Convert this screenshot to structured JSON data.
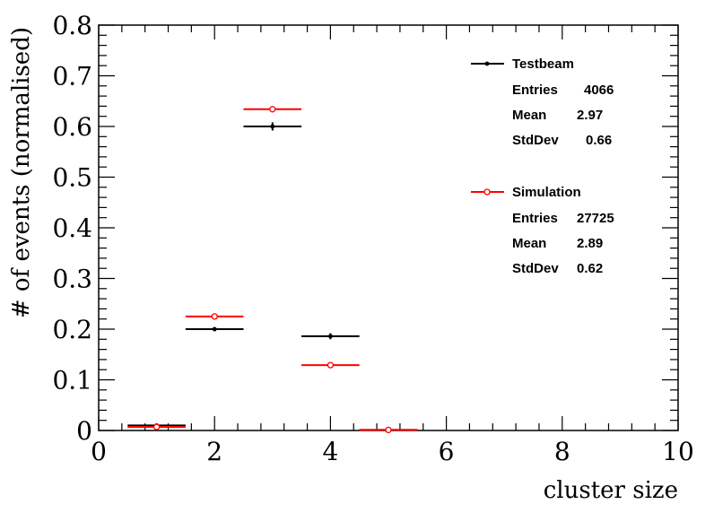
{
  "chart_data": {
    "type": "scatter",
    "xlabel": "cluster size",
    "ylabel": "# of events (normalised)",
    "xlim": [
      0,
      10
    ],
    "ylim": [
      0,
      0.8
    ],
    "x_ticks": [
      "0",
      "2",
      "4",
      "6",
      "8",
      "10"
    ],
    "y_ticks": [
      "0",
      "0.1",
      "0.2",
      "0.3",
      "0.4",
      "0.5",
      "0.6",
      "0.7",
      "0.8"
    ],
    "grid": false,
    "legend_position": "top-right",
    "series": [
      {
        "name": "Testbeam",
        "color": "#000000",
        "marker": "filled-dot",
        "x": [
          1,
          2,
          3,
          4,
          5
        ],
        "y": [
          0.01,
          0.2,
          0.6,
          0.186,
          0.001
        ],
        "yerr": [
          0.002,
          0.004,
          0.008,
          0.006,
          0.0005
        ],
        "xerr": 0.5,
        "stats": {
          "entries_label": "Entries",
          "entries": "4066",
          "mean_label": "Mean",
          "mean": "2.97",
          "stddev_label": "StdDev",
          "stddev": "0.66"
        }
      },
      {
        "name": "Simulation",
        "color": "#ff0000",
        "marker": "open-circle",
        "x": [
          1,
          2,
          3,
          4,
          5
        ],
        "y": [
          0.007,
          0.225,
          0.634,
          0.129,
          0.001
        ],
        "yerr": [
          0.0,
          0.0,
          0.0,
          0.0,
          0.0
        ],
        "xerr": 0.5,
        "stats": {
          "entries_label": "Entries",
          "entries": "27725",
          "mean_label": "Mean",
          "mean": "2.89",
          "stddev_label": "StdDev",
          "stddev": "0.62"
        }
      }
    ]
  }
}
